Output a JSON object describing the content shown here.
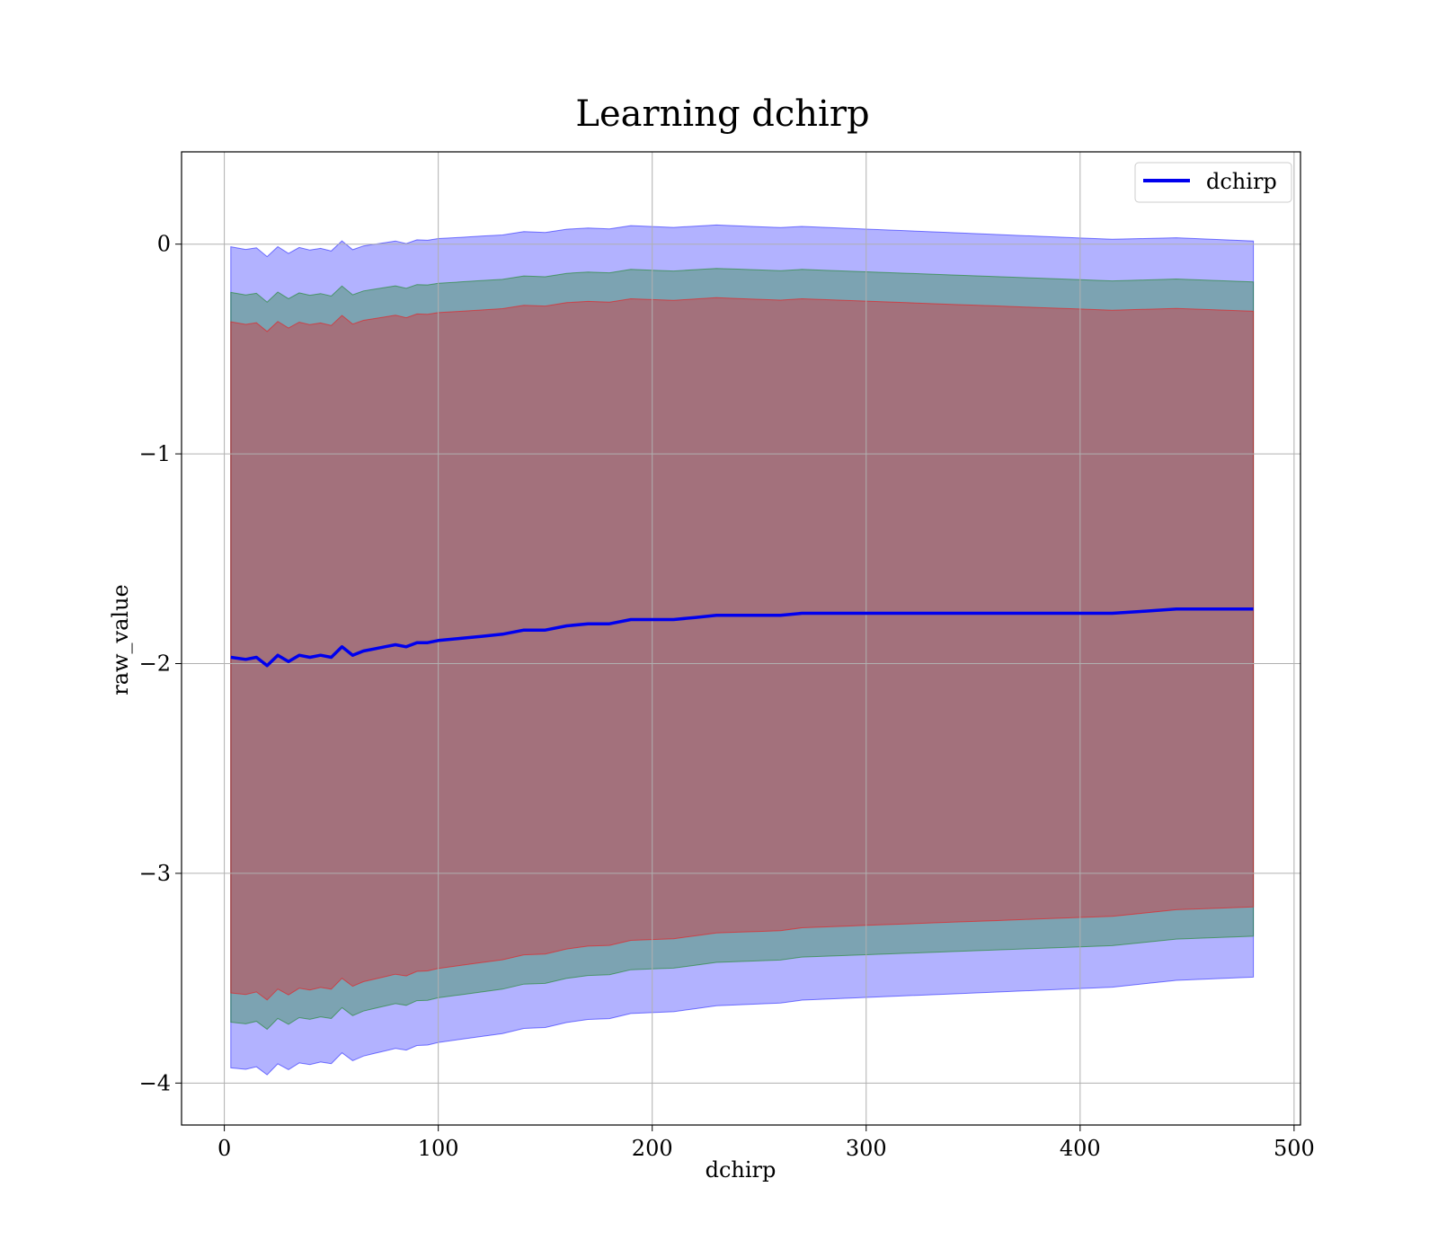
{
  "chart_data": {
    "type": "line",
    "title": "Learning dchirp",
    "xlabel": "dchirp",
    "ylabel": "raw_value",
    "xlim": [
      -20,
      503
    ],
    "ylim": [
      -4.2,
      0.44
    ],
    "xticks": [
      0,
      100,
      200,
      300,
      400,
      500
    ],
    "yticks": [
      0,
      -1,
      -2,
      -3,
      -4
    ],
    "xtick_labels": [
      "0",
      "100",
      "200",
      "300",
      "400",
      "500"
    ],
    "ytick_labels": [
      "0",
      "−1",
      "−2",
      "−3",
      "−4"
    ],
    "grid": true,
    "legend": {
      "position": "top-right",
      "entries": [
        "dchirp"
      ]
    },
    "colors": {
      "line": "#0000ee",
      "band_outer": "#0000ff",
      "band_middle": "#008000",
      "band_inner": "#ff0000",
      "grid": "#b0b0b0"
    },
    "series": [
      {
        "name": "dchirp",
        "x": [
          3,
          10,
          15,
          20,
          25,
          30,
          35,
          40,
          45,
          50,
          55,
          60,
          65,
          70,
          75,
          80,
          85,
          90,
          95,
          100,
          110,
          120,
          130,
          140,
          150,
          160,
          170,
          180,
          190,
          200,
          210,
          220,
          230,
          240,
          250,
          260,
          270,
          280,
          290,
          300,
          320,
          340,
          360,
          380,
          400,
          415,
          430,
          445,
          460,
          470,
          481
        ],
        "y": [
          -1.97,
          -1.98,
          -1.97,
          -2.01,
          -1.96,
          -1.99,
          -1.96,
          -1.97,
          -1.96,
          -1.97,
          -1.92,
          -1.96,
          -1.94,
          -1.93,
          -1.92,
          -1.91,
          -1.92,
          -1.9,
          -1.9,
          -1.89,
          -1.88,
          -1.87,
          -1.86,
          -1.84,
          -1.84,
          -1.82,
          -1.81,
          -1.81,
          -1.79,
          -1.79,
          -1.79,
          -1.78,
          -1.77,
          -1.77,
          -1.77,
          -1.77,
          -1.76,
          -1.76,
          -1.76,
          -1.76,
          -1.76,
          -1.76,
          -1.76,
          -1.76,
          -1.76,
          -1.76,
          -1.75,
          -1.74,
          -1.74,
          -1.74,
          -1.74
        ]
      }
    ]
  }
}
